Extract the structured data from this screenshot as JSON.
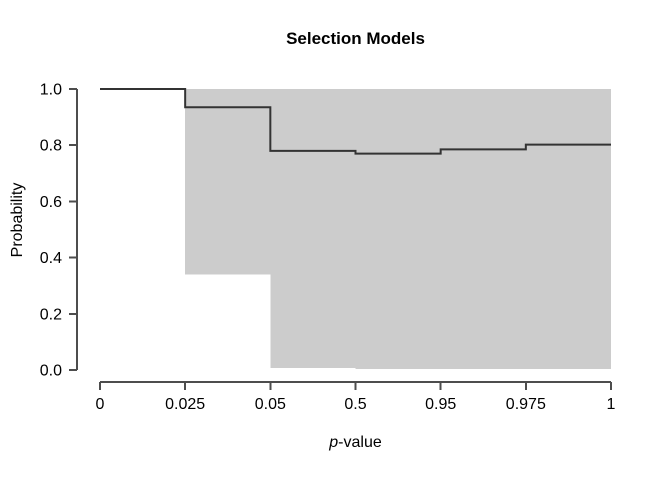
{
  "chart_data": {
    "type": "area",
    "style": "step-function-with-confidence-band",
    "title": "Selection Models",
    "xlabel": "p-value",
    "xlabel_italic": "p",
    "xlabel_rest": "-value",
    "ylabel": "Probability",
    "x_tick_labels": [
      "0",
      "0.025",
      "0.05",
      "0.5",
      "0.95",
      "0.975",
      "1"
    ],
    "x_axis_spacing": "ordinal - breakpoints evenly spaced",
    "y_tick_labels": [
      "0.0",
      "0.2",
      "0.4",
      "0.6",
      "0.8",
      "1.0"
    ],
    "ylim": [
      0,
      1
    ],
    "grid": "off",
    "legend": "none",
    "intervals": [
      {
        "from": "0",
        "to": "0.025"
      },
      {
        "from": "0.025",
        "to": "0.05"
      },
      {
        "from": "0.05",
        "to": "0.5"
      },
      {
        "from": "0.5",
        "to": "0.95"
      },
      {
        "from": "0.95",
        "to": "0.975"
      },
      {
        "from": "0.975",
        "to": "1"
      }
    ],
    "series": [
      {
        "name": "estimate",
        "role": "line",
        "values": [
          1.0,
          0.935,
          0.78,
          0.77,
          0.785,
          0.802
        ]
      },
      {
        "name": "ci_lower",
        "role": "band-lower",
        "values": [
          1.0,
          0.34,
          0.008,
          0.004,
          0.004,
          0.004
        ]
      },
      {
        "name": "ci_upper",
        "role": "band-upper",
        "values": [
          1.0,
          1.0,
          1.0,
          1.0,
          1.0,
          1.0
        ]
      }
    ],
    "colors": {
      "band": "#cccccc",
      "line": "#333333",
      "axis": "#4d4d4d",
      "text": "#000000"
    }
  }
}
